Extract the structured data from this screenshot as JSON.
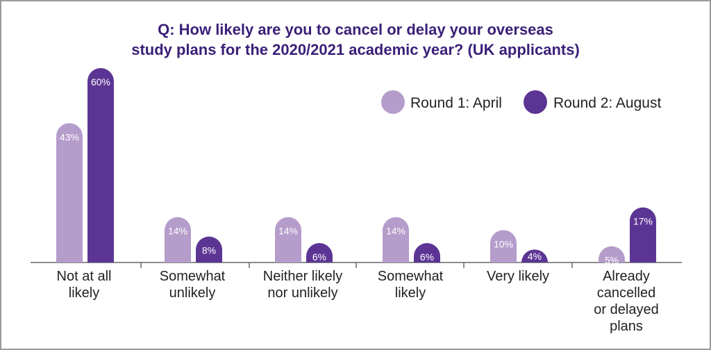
{
  "chart_data": {
    "type": "bar",
    "title_lines": [
      "Q: How likely are you to cancel or delay your overseas",
      "study plans for the 2020/2021 academic year? (UK applicants)"
    ],
    "categories": [
      [
        "Not at all",
        "likely"
      ],
      [
        "Somewhat",
        "unlikely"
      ],
      [
        "Neither likely",
        "nor unlikely"
      ],
      [
        "Somewhat",
        "likely"
      ],
      [
        "Very likely"
      ],
      [
        "Already",
        "cancelled",
        "or delayed",
        "plans"
      ]
    ],
    "series": [
      {
        "name": "Round 1: April",
        "color": "#b49ccb",
        "values": [
          43,
          14,
          14,
          14,
          10,
          5
        ],
        "labels": [
          "43%",
          "14%",
          "14%",
          "14%",
          "10%",
          "5%"
        ]
      },
      {
        "name": "Round 2: August",
        "color": "#5c3594",
        "values": [
          60,
          8,
          6,
          6,
          4,
          17
        ],
        "labels": [
          "60%",
          "8%",
          "6%",
          "6%",
          "4%",
          "17%"
        ]
      }
    ],
    "ylim": [
      0,
      60
    ],
    "grid": false,
    "legend_position": "top-right",
    "colors": {
      "title": "#3b2078",
      "axis": "#666666",
      "border": "#9a9a9a"
    }
  }
}
